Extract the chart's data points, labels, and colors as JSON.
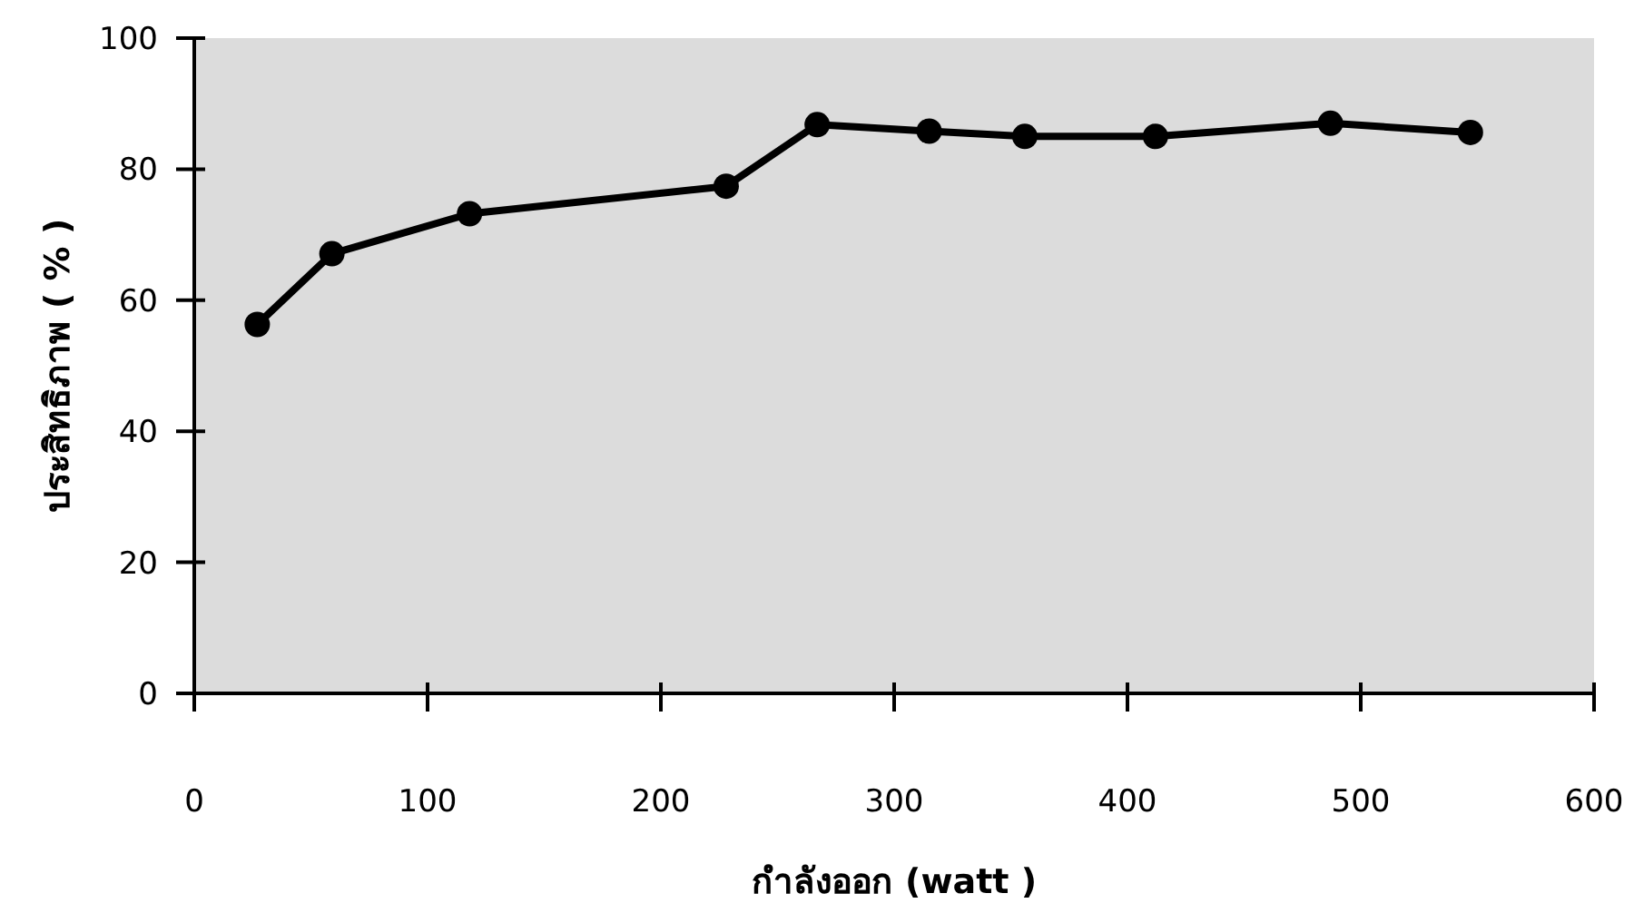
{
  "chart_data": {
    "type": "line",
    "xlabel": "กำลังออก (watt )",
    "ylabel": "ประสิทธิภาพ ( % )",
    "x": [
      27,
      59,
      118,
      228,
      267,
      315,
      356,
      412,
      487,
      547
    ],
    "series": [
      {
        "color": "#000000",
        "values": [
          56.3,
          67.1,
          73.2,
          77.4,
          86.8,
          85.8,
          85,
          85,
          87,
          85.6
        ]
      }
    ],
    "xlim": [
      0,
      600
    ],
    "ylim": [
      0,
      100
    ],
    "xticks": [
      0,
      100,
      200,
      300,
      400,
      500,
      600
    ],
    "yticks": [
      0,
      20,
      40,
      60,
      80,
      100
    ],
    "marker": "circle",
    "line_style": "solid"
  }
}
